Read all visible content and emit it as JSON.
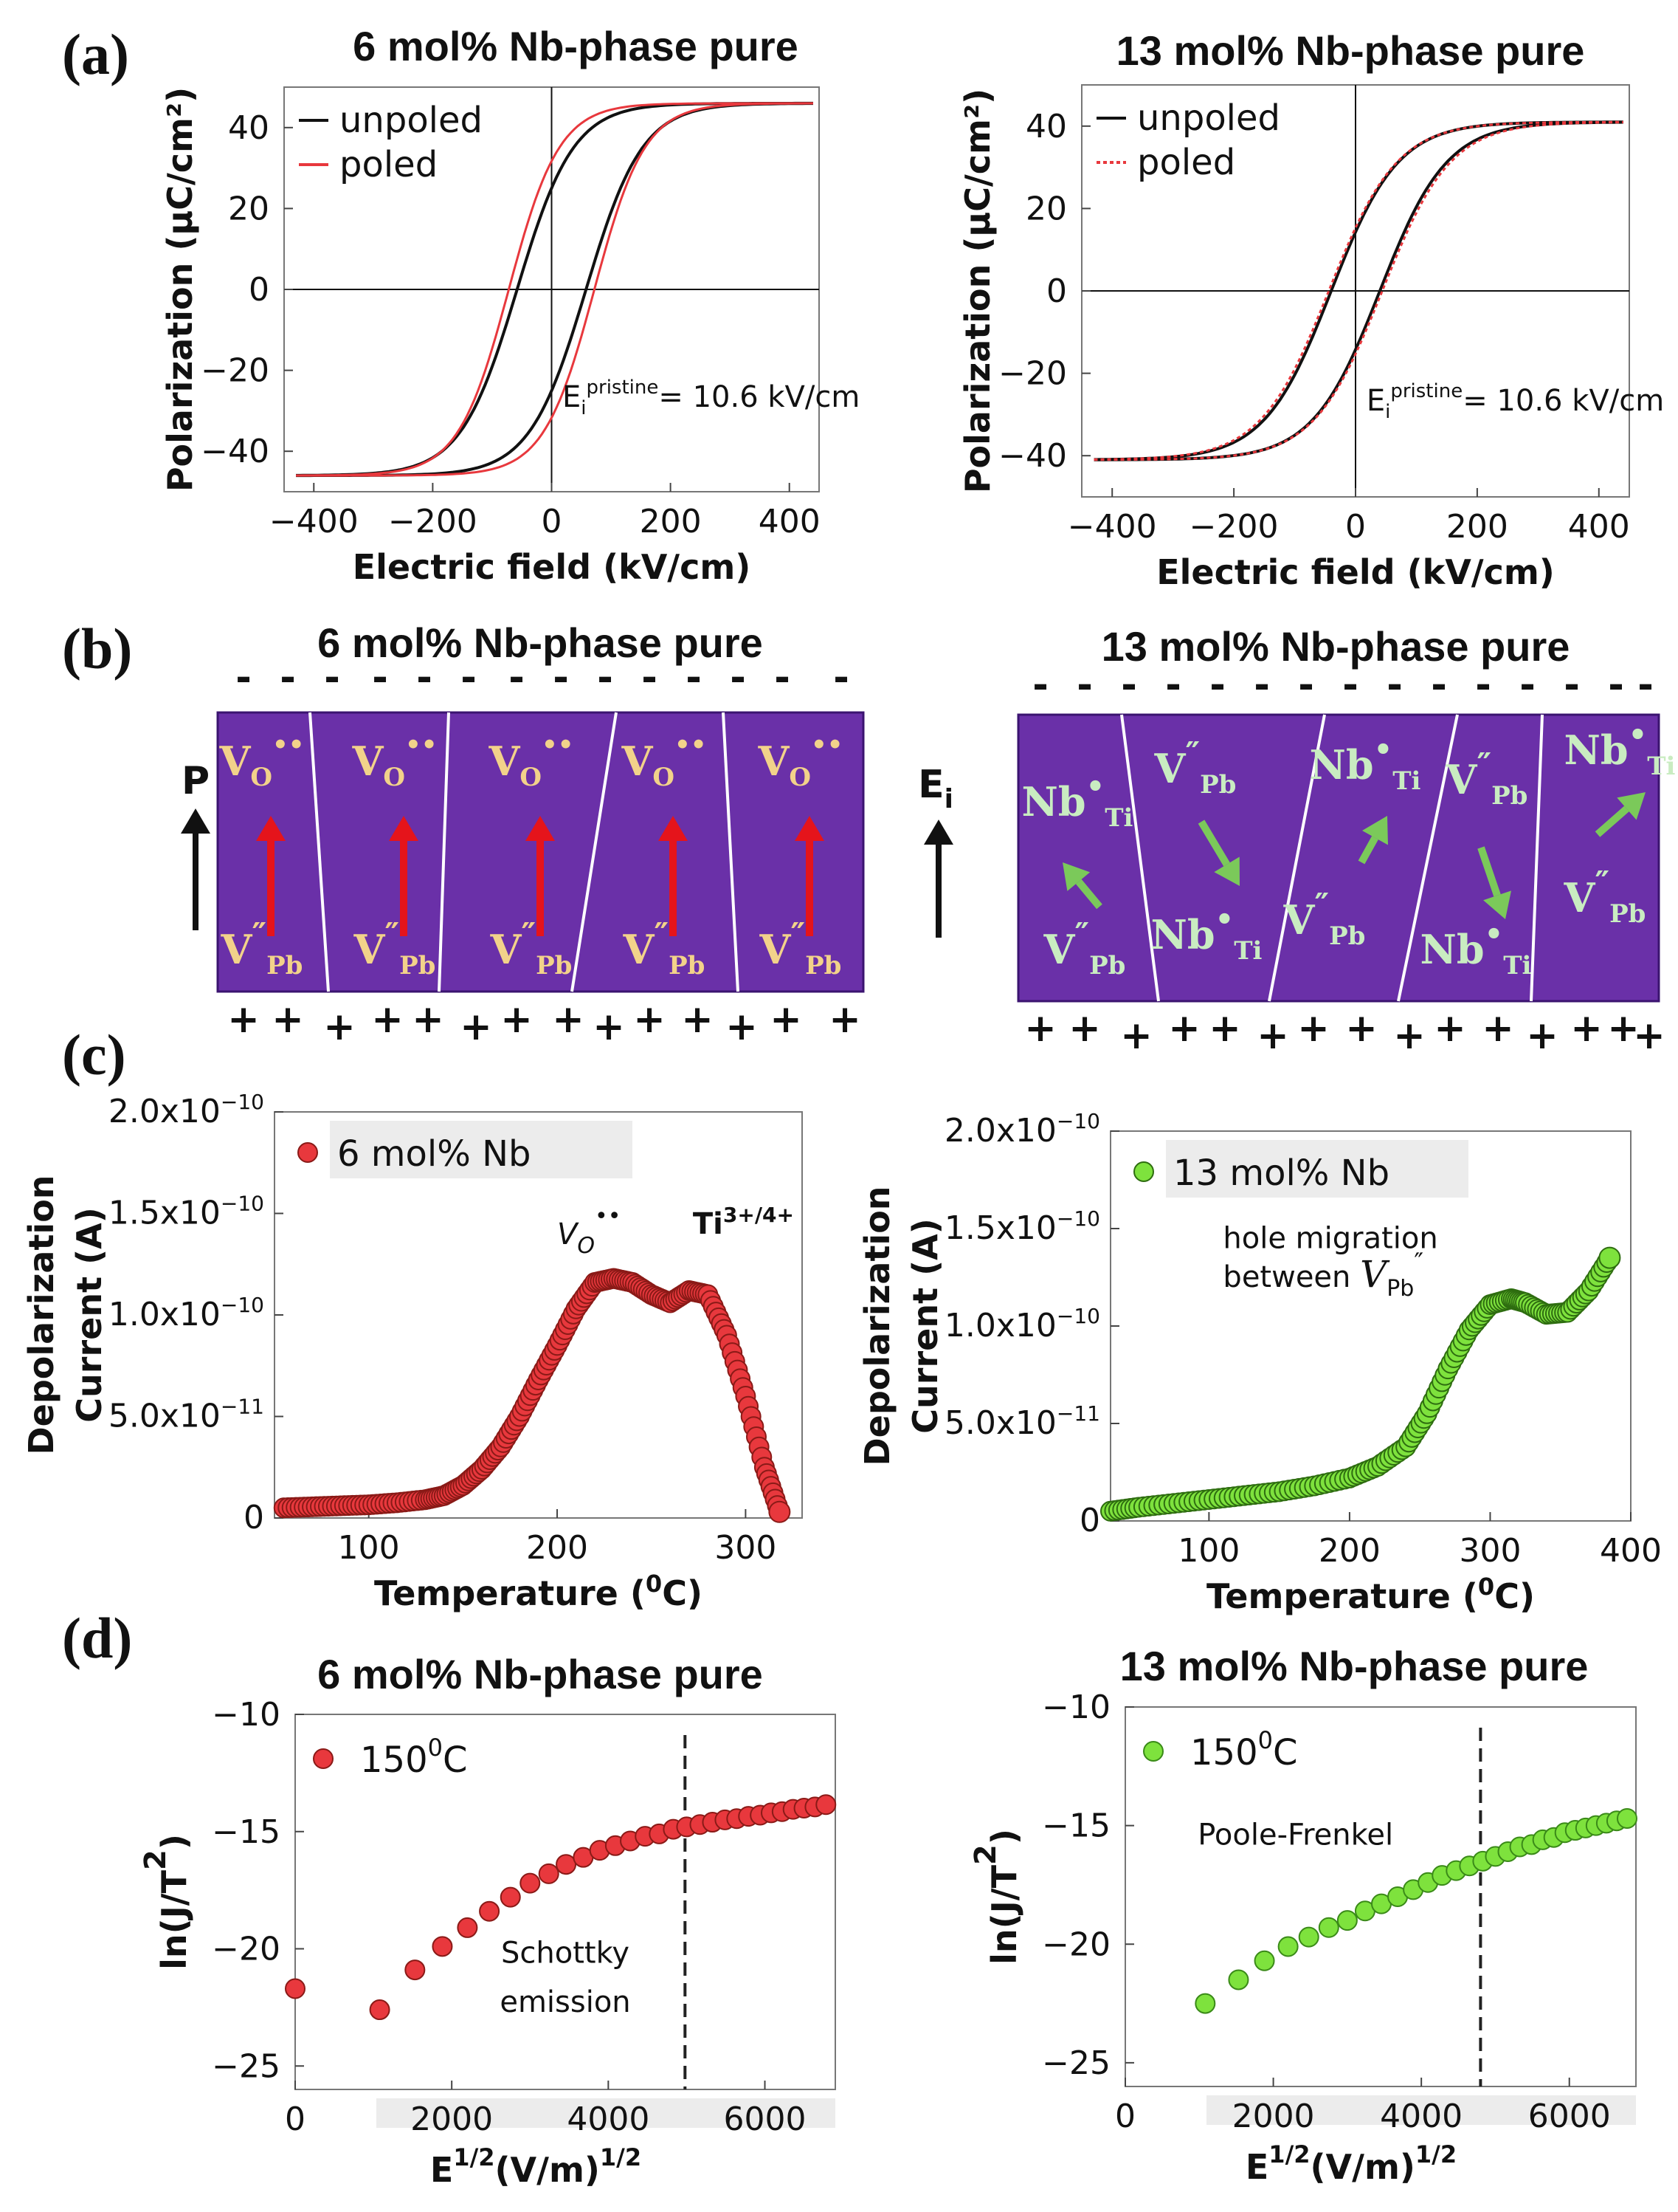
{
  "panel_labels": [
    "(a)",
    "(b)",
    "(c)",
    "(d)"
  ],
  "colors": {
    "black": "#111111",
    "red": "#e8383d",
    "dark_red": "#c0221f",
    "green": "#7ee23d",
    "dark_green": "#2e8a10",
    "domain_fill": "#6a30a8",
    "ion_yellow": "#f2d28a",
    "ion_green": "#c9ecc1",
    "arrow_red": "#e5141b",
    "arrow_green": "#7bc95a"
  },
  "titles": {
    "a_left": "6 mol% Nb-phase pure",
    "a_right": "13 mol% Nb-phase pure",
    "b_left": "6 mol% Nb-phase pure",
    "b_right": "13 mol% Nb-phase pure",
    "d_left": "6 mol% Nb-phase pure",
    "d_right": "13 mol% Nb-phase pure"
  },
  "schematic": {
    "left_vector": "P",
    "right_vector_base": "E",
    "right_vector_sub": "i",
    "minus": "-",
    "plus": "+",
    "ions": {
      "vo_base": "V",
      "vo_sub": "O",
      "vo_sup": "••",
      "vpb_base": "V",
      "vpb_sub": "Pb",
      "vpb_sup": "″",
      "nb_base": "Nb",
      "nb_sub": "Ti",
      "nb_sup": "•"
    }
  },
  "chart_data": [
    {
      "id": "a_left",
      "type": "line",
      "title": "6 mol% Nb-phase pure",
      "xlabel": "Electric field (kV/cm)",
      "ylabel": "Polarization (μC/cm²)",
      "xlim": [
        -450,
        450
      ],
      "ylim": [
        -50,
        50
      ],
      "xticks": [
        -400,
        -200,
        0,
        200,
        400
      ],
      "yticks": [
        -40,
        -20,
        0,
        20,
        40
      ],
      "xticklabels": [
        "−400",
        "−200",
        "0",
        "200",
        "400"
      ],
      "yticklabels": [
        "−40",
        "−20",
        "0",
        "20",
        "40"
      ],
      "annotation": {
        "prefix": "E",
        "sub": "i",
        "sup": "pristine",
        "suffix": "= 10.6 kV/cm"
      },
      "series": [
        {
          "name": "unpoled",
          "color": "#111111",
          "Ps": 46,
          "Ec": 58,
          "Pm": 45,
          "shape": 95
        },
        {
          "name": "poled",
          "color": "#e8383d",
          "Ps": 46,
          "Ec": 72,
          "Pm": 45,
          "shape": 85
        }
      ]
    },
    {
      "id": "a_right",
      "type": "line",
      "title": "13 mol% Nb-phase pure",
      "xlabel": "Electric field (kV/cm)",
      "ylabel": "Polarization (μC/cm²)",
      "xlim": [
        -450,
        450
      ],
      "ylim": [
        -50,
        50
      ],
      "xticks": [
        -400,
        -200,
        0,
        200,
        400
      ],
      "yticks": [
        -40,
        -20,
        0,
        20,
        40
      ],
      "xticklabels": [
        "−400",
        "−200",
        "0",
        "200",
        "400"
      ],
      "yticklabels": [
        "−40",
        "−20",
        "0",
        "20",
        "40"
      ],
      "annotation": {
        "prefix": "E",
        "sub": "i",
        "sup": "pristine",
        "suffix": "= 10.6 kV/cm"
      },
      "series": [
        {
          "name": "unpoled",
          "color": "#111111",
          "Ps": 41,
          "Ec": 40,
          "Pm": 41,
          "shape": 110
        },
        {
          "name": "poled",
          "color": "#e8383d",
          "Ps": 41,
          "Ec": 44,
          "Pm": 41,
          "shape": 112
        }
      ]
    },
    {
      "id": "c_left",
      "type": "scatter",
      "xlabel_base": "Temperature (",
      "xlabel_sup": "0",
      "xlabel_end": "C)",
      "ylabel_lines": [
        "Depolarization",
        "Current (A)"
      ],
      "xlim": [
        50,
        330
      ],
      "ylim": [
        0,
        2e-10
      ],
      "xticks": [
        100,
        200,
        300
      ],
      "xticklabels": [
        "100",
        "200",
        "300"
      ],
      "yticks": [
        0,
        5e-11,
        1e-10,
        1.5e-10,
        2e-10
      ],
      "ytick_mantissa": [
        "0",
        "5.0x10",
        "1.0x10",
        "1.5x10",
        "2.0x10"
      ],
      "ytick_exp": [
        "",
        "−11",
        "−10",
        "−10",
        "−10"
      ],
      "legend": "6 mol% Nb",
      "peak_labels": [
        {
          "base": "V",
          "sub": "O",
          "sup": "••"
        },
        {
          "base": "Ti",
          "sup": "3+/4+"
        }
      ],
      "x": [
        55,
        70,
        85,
        100,
        115,
        130,
        140,
        150,
        160,
        170,
        180,
        190,
        200,
        210,
        220,
        230,
        240,
        250,
        260,
        270,
        280,
        290,
        300,
        310,
        318
      ],
      "values": [
        5e-12,
        5.5e-12,
        6e-12,
        6.5e-12,
        7.5e-12,
        9e-12,
        1.1e-11,
        1.6e-11,
        2.4e-11,
        3.5e-11,
        5e-11,
        6.8e-11,
        8.5e-11,
        1.03e-10,
        1.16e-10,
        1.18e-10,
        1.16e-10,
        1.1e-10,
        1.06e-10,
        1.12e-10,
        1.1e-10,
        9e-11,
        6e-11,
        2.5e-11,
        3e-12
      ],
      "color": "#e8383d"
    },
    {
      "id": "c_right",
      "type": "scatter",
      "xlabel_base": "Temperature (",
      "xlabel_sup": "0",
      "xlabel_end": "C)",
      "ylabel_lines": [
        "Depolarization",
        "Current (A)"
      ],
      "xlim": [
        30,
        400
      ],
      "ylim": [
        0,
        2e-10
      ],
      "xticks": [
        100,
        200,
        300,
        400
      ],
      "xticklabels": [
        "100",
        "200",
        "300",
        "400"
      ],
      "yticks": [
        0,
        5e-11,
        1e-10,
        1.5e-10,
        2e-10
      ],
      "ytick_mantissa": [
        "0",
        "5.0x10",
        "1.0x10",
        "1.5x10",
        "2.0x10"
      ],
      "ytick_exp": [
        "",
        "−11",
        "−10",
        "−10",
        "−10"
      ],
      "legend": "13 mol% Nb",
      "annotation_lines": [
        "hole migration",
        "between "
      ],
      "annotation_ion": {
        "base": "V",
        "sub": "Pb",
        "sup": "″"
      },
      "x": [
        30,
        50,
        75,
        100,
        125,
        150,
        175,
        200,
        220,
        240,
        255,
        270,
        285,
        300,
        315,
        325,
        340,
        355,
        370,
        385
      ],
      "values": [
        5e-12,
        7e-12,
        9e-12,
        1.1e-11,
        1.3e-11,
        1.5e-11,
        1.8e-11,
        2.2e-11,
        2.8e-11,
        3.8e-11,
        5.5e-11,
        7.8e-11,
        9.8e-11,
        1.11e-10,
        1.14e-10,
        1.12e-10,
        1.06e-10,
        1.07e-10,
        1.18e-10,
        1.35e-10
      ],
      "color": "#7ee23d"
    },
    {
      "id": "d_left",
      "type": "scatter",
      "title": "6 mol% Nb-phase pure",
      "xlabel_base": "E",
      "xlabel_sup": "1/2",
      "xlabel_end": "(V/m)",
      "xlabel_sup2": "1/2",
      "ylabel_base": "ln(J/T",
      "ylabel_sup": "2",
      "ylabel_end": ")",
      "xlim": [
        0,
        6900
      ],
      "ylim": [
        -26,
        -10
      ],
      "xticks": [
        0,
        2000,
        4000,
        6000
      ],
      "xticklabels": [
        "0",
        "2000",
        "4000",
        "6000"
      ],
      "yticks": [
        -25,
        -20,
        -15,
        -10
      ],
      "yticklabels": [
        "−25",
        "−20",
        "−15",
        "−10"
      ],
      "legend_base": "150",
      "legend_sup": "0",
      "legend_end": "C",
      "annotation_lines": [
        "Schottky",
        "emission"
      ],
      "dashed_x": 4980,
      "x": [
        0,
        1080,
        1530,
        1880,
        2200,
        2480,
        2750,
        3000,
        3240,
        3460,
        3680,
        3890,
        4090,
        4280,
        4470,
        4650,
        4830,
        5000,
        5170,
        5330,
        5490,
        5640,
        5790,
        5940,
        6080,
        6220,
        6360,
        6500,
        6640,
        6780
      ],
      "values": [
        -21.7,
        -22.6,
        -20.9,
        -19.9,
        -19.1,
        -18.4,
        -17.8,
        -17.2,
        -16.8,
        -16.4,
        -16.1,
        -15.8,
        -15.6,
        -15.4,
        -15.2,
        -15.1,
        -14.9,
        -14.8,
        -14.7,
        -14.6,
        -14.5,
        -14.45,
        -14.35,
        -14.3,
        -14.2,
        -14.15,
        -14.05,
        -14.0,
        -13.95,
        -13.85
      ],
      "color": "#e8383d"
    },
    {
      "id": "d_right",
      "type": "scatter",
      "title": "13 mol% Nb-phase pure",
      "xlabel_base": "E",
      "xlabel_sup": "1/2",
      "xlabel_end": "(V/m)",
      "xlabel_sup2": "1/2",
      "ylabel_base": "ln(J/T",
      "ylabel_sup": "2",
      "ylabel_end": ")",
      "xlim": [
        0,
        6900
      ],
      "ylim": [
        -26,
        -10
      ],
      "xticks": [
        0,
        2000,
        4000,
        6000
      ],
      "xticklabels": [
        "0",
        "2000",
        "4000",
        "6000"
      ],
      "yticks": [
        -25,
        -20,
        -15,
        -10
      ],
      "yticklabels": [
        "−25",
        "−20",
        "−15",
        "−10"
      ],
      "legend_base": "150",
      "legend_sup": "0",
      "legend_end": "C",
      "annotation_lines": [
        "Poole-Frenkel"
      ],
      "dashed_x": 4800,
      "x": [
        1080,
        1530,
        1880,
        2200,
        2480,
        2750,
        3000,
        3240,
        3460,
        3680,
        3890,
        4090,
        4280,
        4470,
        4650,
        4830,
        5000,
        5170,
        5330,
        5490,
        5640,
        5790,
        5940,
        6080,
        6220,
        6360,
        6500,
        6640,
        6780
      ],
      "values": [
        -22.5,
        -21.5,
        -20.7,
        -20.1,
        -19.7,
        -19.3,
        -19.0,
        -18.6,
        -18.3,
        -18.0,
        -17.7,
        -17.4,
        -17.1,
        -16.9,
        -16.7,
        -16.5,
        -16.3,
        -16.1,
        -15.9,
        -15.8,
        -15.6,
        -15.5,
        -15.3,
        -15.2,
        -15.1,
        -15.0,
        -14.9,
        -14.8,
        -14.7
      ],
      "color": "#7ee23d"
    }
  ]
}
